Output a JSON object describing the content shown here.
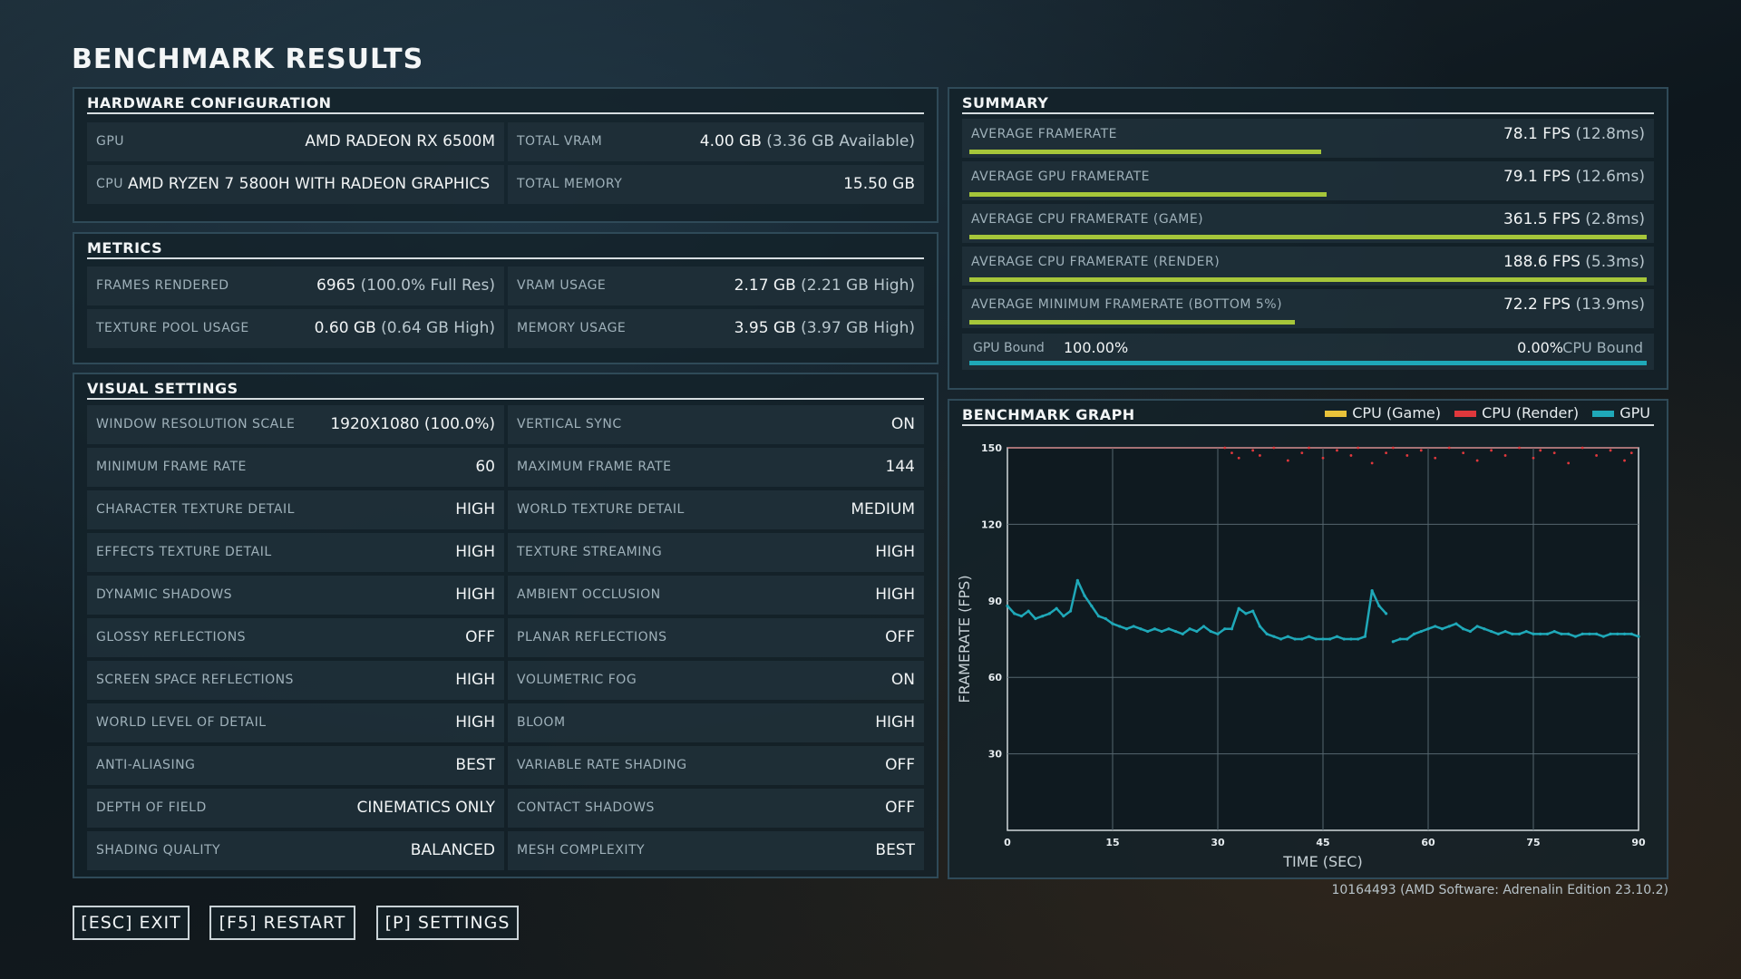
{
  "page_title": "BENCHMARK RESULTS",
  "hardware": {
    "heading": "HARDWARE CONFIGURATION",
    "gpu_label": "GPU",
    "gpu_value": "AMD RADEON RX 6500M",
    "vram_label": "TOTAL VRAM",
    "vram_value": "4.00 GB",
    "vram_sub": "(3.36 GB Available)",
    "cpu_label": "CPU",
    "cpu_value": "AMD RYZEN 7 5800H WITH RADEON GRAPHICS",
    "mem_label": "TOTAL MEMORY",
    "mem_value": "15.50 GB"
  },
  "metrics": {
    "heading": "METRICS",
    "frames_label": "FRAMES RENDERED",
    "frames_value": "6965",
    "frames_sub": "(100.0% Full Res)",
    "vram_label": "VRAM USAGE",
    "vram_value": "2.17 GB",
    "vram_sub": "(2.21 GB High)",
    "pool_label": "TEXTURE POOL USAGE",
    "pool_value": "0.60 GB",
    "pool_sub": "(0.64 GB High)",
    "mem_label": "MEMORY USAGE",
    "mem_value": "3.95 GB",
    "mem_sub": "(3.97 GB High)"
  },
  "visual": {
    "heading": "VISUAL SETTINGS",
    "rows": [
      {
        "l_label": "WINDOW RESOLUTION SCALE",
        "l_value": "1920X1080 (100.0%)",
        "r_label": "VERTICAL SYNC",
        "r_value": "ON"
      },
      {
        "l_label": "MINIMUM FRAME RATE",
        "l_value": "60",
        "r_label": "MAXIMUM FRAME RATE",
        "r_value": "144"
      },
      {
        "l_label": "CHARACTER TEXTURE DETAIL",
        "l_value": "HIGH",
        "r_label": "WORLD TEXTURE DETAIL",
        "r_value": "MEDIUM"
      },
      {
        "l_label": "EFFECTS TEXTURE DETAIL",
        "l_value": "HIGH",
        "r_label": "TEXTURE STREAMING",
        "r_value": "HIGH"
      },
      {
        "l_label": "DYNAMIC SHADOWS",
        "l_value": "HIGH",
        "r_label": "AMBIENT OCCLUSION",
        "r_value": "HIGH"
      },
      {
        "l_label": "GLOSSY REFLECTIONS",
        "l_value": "OFF",
        "r_label": "PLANAR REFLECTIONS",
        "r_value": "OFF"
      },
      {
        "l_label": "SCREEN SPACE REFLECTIONS",
        "l_value": "HIGH",
        "r_label": "VOLUMETRIC FOG",
        "r_value": "ON"
      },
      {
        "l_label": "WORLD LEVEL OF DETAIL",
        "l_value": "HIGH",
        "r_label": "BLOOM",
        "r_value": "HIGH"
      },
      {
        "l_label": "ANTI-ALIASING",
        "l_value": "BEST",
        "r_label": "VARIABLE RATE SHADING",
        "r_value": "OFF"
      },
      {
        "l_label": "DEPTH OF FIELD",
        "l_value": "CINEMATICS ONLY",
        "r_label": "CONTACT SHADOWS",
        "r_value": "OFF"
      },
      {
        "l_label": "SHADING QUALITY",
        "l_value": "BALANCED",
        "r_label": "MESH COMPLEXITY",
        "r_value": "BEST"
      }
    ]
  },
  "summary": {
    "heading": "SUMMARY",
    "rows": [
      {
        "label": "AVERAGE FRAMERATE",
        "value": "78.1 FPS",
        "sub": "(12.8ms)",
        "bar_fraction": 0.52
      },
      {
        "label": "AVERAGE GPU FRAMERATE",
        "value": "79.1 FPS",
        "sub": "(12.6ms)",
        "bar_fraction": 0.527
      },
      {
        "label": "AVERAGE CPU FRAMERATE (GAME)",
        "value": "361.5 FPS",
        "sub": "(2.8ms)",
        "bar_fraction": 1.0
      },
      {
        "label": "AVERAGE CPU FRAMERATE (RENDER)",
        "value": "188.6 FPS",
        "sub": "(5.3ms)",
        "bar_fraction": 1.0
      },
      {
        "label": "AVERAGE MINIMUM FRAMERATE (BOTTOM 5%)",
        "value": "72.2 FPS",
        "sub": "(13.9ms)",
        "bar_fraction": 0.48
      }
    ],
    "gpu_bound_label": "GPU Bound",
    "gpu_bound_value": "100.00%",
    "cpu_bound_value": "0.00%",
    "cpu_bound_label": "CPU Bound",
    "bar_color": "#a6c63a",
    "bound_color": "#1fa8b8"
  },
  "graph": {
    "heading": "BENCHMARK GRAPH",
    "legend": [
      {
        "name": "CPU (Game)",
        "color": "#e9c23a"
      },
      {
        "name": "CPU (Render)",
        "color": "#e0383c"
      },
      {
        "name": "GPU",
        "color": "#1fa8b8"
      }
    ]
  },
  "chart_data": {
    "type": "line",
    "title": "BENCHMARK GRAPH",
    "xlabel": "TIME (SEC)",
    "ylabel": "FRAMERATE (FPS)",
    "xlim": [
      0,
      90
    ],
    "ylim": [
      0,
      150
    ],
    "x_ticks": [
      0,
      15,
      30,
      45,
      60,
      75,
      90
    ],
    "y_ticks": [
      30,
      60,
      90,
      120,
      150
    ],
    "grid": true,
    "legend_position": "top-right",
    "series": [
      {
        "name": "CPU (Game)",
        "x": [],
        "y": []
      },
      {
        "name": "CPU (Render)",
        "x": [
          31,
          32,
          33,
          35,
          36,
          38,
          40,
          42,
          43,
          45,
          47,
          49,
          50,
          52,
          54,
          55,
          57,
          59,
          61,
          63,
          65,
          67,
          69,
          71,
          73,
          75,
          76,
          78,
          80,
          82,
          84,
          86,
          88,
          89
        ],
        "y": [
          150,
          148,
          146,
          149,
          147,
          150,
          145,
          148,
          150,
          146,
          149,
          147,
          150,
          144,
          148,
          150,
          147,
          149,
          146,
          150,
          148,
          145,
          149,
          147,
          150,
          146,
          149,
          148,
          144,
          150,
          147,
          149,
          145,
          148
        ]
      },
      {
        "name": "GPU",
        "x": [
          0,
          1,
          2,
          3,
          4,
          5,
          6,
          7,
          8,
          9,
          10,
          11,
          12,
          13,
          14,
          15,
          16,
          17,
          18,
          19,
          20,
          21,
          22,
          23,
          24,
          25,
          26,
          27,
          28,
          29,
          30,
          31,
          32,
          33,
          34,
          35,
          36,
          37,
          38,
          39,
          40,
          41,
          42,
          43,
          44,
          45,
          46,
          47,
          48,
          49,
          50,
          51,
          52,
          53,
          54,
          54.5,
          55,
          56,
          57,
          58,
          59,
          60,
          61,
          62,
          63,
          64,
          65,
          66,
          67,
          68,
          69,
          70,
          71,
          72,
          73,
          74,
          75,
          76,
          77,
          78,
          79,
          80,
          81,
          82,
          83,
          84,
          85,
          86,
          87,
          88,
          89,
          90
        ],
        "y": [
          88,
          85,
          84,
          86,
          83,
          84,
          85,
          87,
          84,
          86,
          98,
          92,
          88,
          84,
          83,
          81,
          80,
          79,
          80,
          79,
          78,
          79,
          78,
          79,
          78,
          77,
          79,
          78,
          80,
          78,
          77,
          79,
          79,
          87,
          85,
          86,
          80,
          77,
          76,
          75,
          76,
          75,
          75,
          76,
          75,
          75,
          75,
          76,
          75,
          75,
          75,
          76,
          94,
          88,
          85,
          0,
          74,
          75,
          75,
          77,
          78,
          79,
          80,
          79,
          80,
          81,
          79,
          78,
          80,
          79,
          78,
          77,
          78,
          77,
          77,
          78,
          77,
          77,
          77,
          78,
          77,
          77,
          76,
          77,
          77,
          77,
          76,
          77,
          77,
          77,
          77,
          76
        ]
      }
    ]
  },
  "footer": {
    "version": "10164493 (AMD Software: Adrenalin Edition 23.10.2)",
    "exit_label": "[ESC] EXIT",
    "restart_label": "[F5] RESTART",
    "settings_label": "[P] SETTINGS"
  }
}
